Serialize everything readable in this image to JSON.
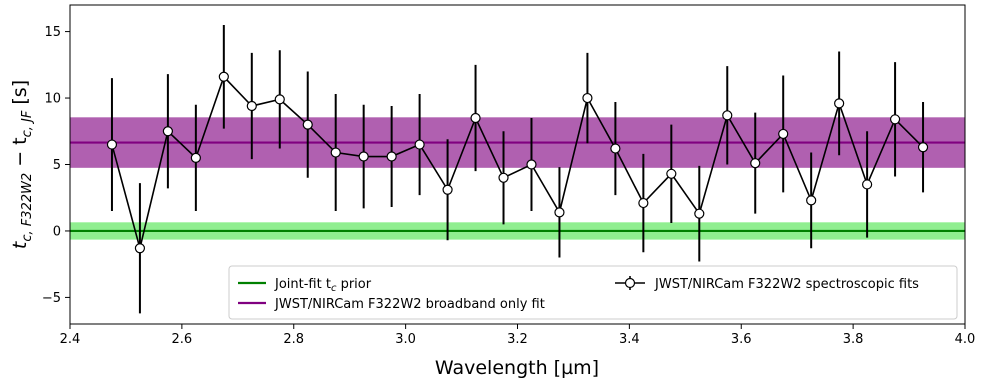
{
  "chart_data": {
    "type": "scatter",
    "xlabel": "Wavelength [µm]",
    "ylabel": {
      "base1": "t",
      "sub1": "c, F322W2",
      "mid": " − t",
      "sub2": "c, JF",
      "tail": " [s]"
    },
    "xlim": [
      2.4,
      4.0
    ],
    "ylim": [
      -7,
      17
    ],
    "xticks": [
      2.4,
      2.6,
      2.8,
      3.0,
      3.2,
      3.4,
      3.6,
      3.8,
      4.0
    ],
    "xtick_labels": [
      "2.4",
      "2.6",
      "2.8",
      "3.0",
      "3.2",
      "3.4",
      "3.6",
      "3.8",
      "4.0"
    ],
    "yticks": [
      -5,
      0,
      5,
      10,
      15
    ],
    "ytick_labels": [
      "−5",
      "0",
      "5",
      "10",
      "15"
    ],
    "grid": false,
    "legend_position": "lower-center",
    "bands": [
      {
        "name": "Joint-fit t_c prior",
        "center": 0.0,
        "low": -0.65,
        "high": 0.65,
        "line_color": "#008000",
        "fill_color": "#90ee90"
      },
      {
        "name": "JWST/NIRCam F322W2 broadband only fit",
        "center": 6.65,
        "low": 4.75,
        "high": 8.55,
        "line_color": "#800080",
        "fill_color": "#b060b0"
      }
    ],
    "series": [
      {
        "name": "JWST/NIRCam F322W2 spectroscopic fits",
        "color": "#000000",
        "x": [
          2.475,
          2.525,
          2.575,
          2.625,
          2.675,
          2.725,
          2.775,
          2.825,
          2.875,
          2.925,
          2.975,
          3.025,
          3.075,
          3.125,
          3.175,
          3.225,
          3.275,
          3.325,
          3.375,
          3.425,
          3.475,
          3.525,
          3.575,
          3.625,
          3.675,
          3.725,
          3.775,
          3.825,
          3.875,
          3.925
        ],
        "y": [
          6.5,
          -1.3,
          7.5,
          5.5,
          11.6,
          9.4,
          9.9,
          8.0,
          5.9,
          5.6,
          5.6,
          6.5,
          3.1,
          8.5,
          4.0,
          5.0,
          1.4,
          10.0,
          6.2,
          2.1,
          4.3,
          1.3,
          8.7,
          5.1,
          7.3,
          2.3,
          9.6,
          3.5,
          8.4,
          6.3
        ],
        "yerr": [
          5.0,
          4.9,
          4.3,
          4.0,
          3.9,
          4.0,
          3.7,
          4.0,
          4.4,
          3.9,
          3.8,
          3.8,
          3.8,
          4.0,
          3.5,
          3.5,
          3.4,
          3.4,
          3.5,
          3.7,
          3.7,
          3.6,
          3.7,
          3.8,
          4.4,
          3.6,
          3.9,
          4.0,
          4.3,
          3.4
        ]
      }
    ],
    "legend": {
      "prior_label": {
        "text": "Joint-fit t",
        "sub": "c",
        "tail": " prior"
      },
      "broadband_label": "JWST/NIRCam F322W2 broadband only fit",
      "spectro_label": "JWST/NIRCam F322W2 spectroscopic fits"
    }
  }
}
